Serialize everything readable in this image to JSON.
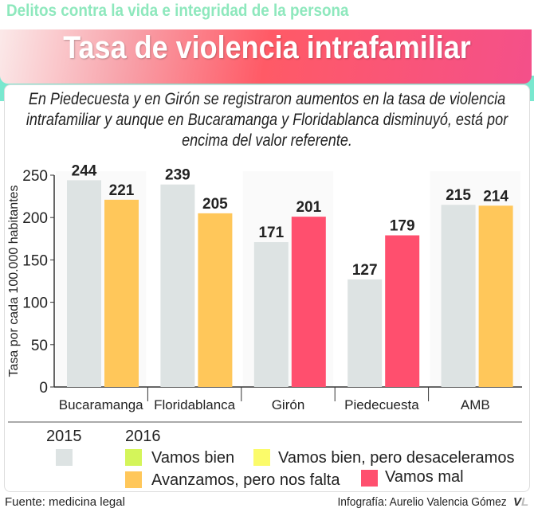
{
  "header": {
    "supertitle": "Delitos contra la vida e integridad de la persona",
    "title": "Tasa de violencia intrafamiliar"
  },
  "intro": "En Piedecuesta y en Girón se registraron aumentos en la tasa de violencia intrafamiliar y aunque en Bucaramanga y Floridablanca disminuyó, está por encima del valor referente.",
  "chart_data": {
    "type": "bar",
    "ylabel": "Tasa por cada 100.000 habitantes",
    "ylim": [
      0,
      250
    ],
    "yticks": [
      "0",
      "50",
      "100",
      "150",
      "200",
      "250"
    ],
    "categories": [
      "Bucaramanga",
      "Floridablanca",
      "Girón",
      "Piedecuesta",
      "AMB"
    ],
    "series": [
      {
        "name": "2015",
        "values": [
          244,
          239,
          171,
          127,
          215
        ],
        "colors": [
          "#dde3e3",
          "#dde3e3",
          "#dde3e3",
          "#dde3e3",
          "#dde3e3"
        ]
      },
      {
        "name": "2016",
        "values": [
          221,
          205,
          201,
          179,
          214
        ],
        "colors": [
          "#ffc75a",
          "#ffc75a",
          "#ff4f6e",
          "#ff4f6e",
          "#ffc75a"
        ]
      }
    ],
    "grid": false
  },
  "legend": {
    "y2015": "2015",
    "y2016": "2016",
    "items": [
      {
        "label": "Vamos bien",
        "color": "#d4f55a"
      },
      {
        "label": "Vamos bien, pero desaceleramos",
        "color": "#fbfb6a"
      },
      {
        "label": "Avanzamos, pero nos falta",
        "color": "#ffc75a"
      },
      {
        "label": "Vamos mal",
        "color": "#ff4f6e"
      }
    ],
    "color2015": "#dde3e3"
  },
  "footer": {
    "source": "Fuente: medicina legal",
    "credit": "Infografía: Aurelio Valencia Gómez",
    "logo": "VL"
  }
}
